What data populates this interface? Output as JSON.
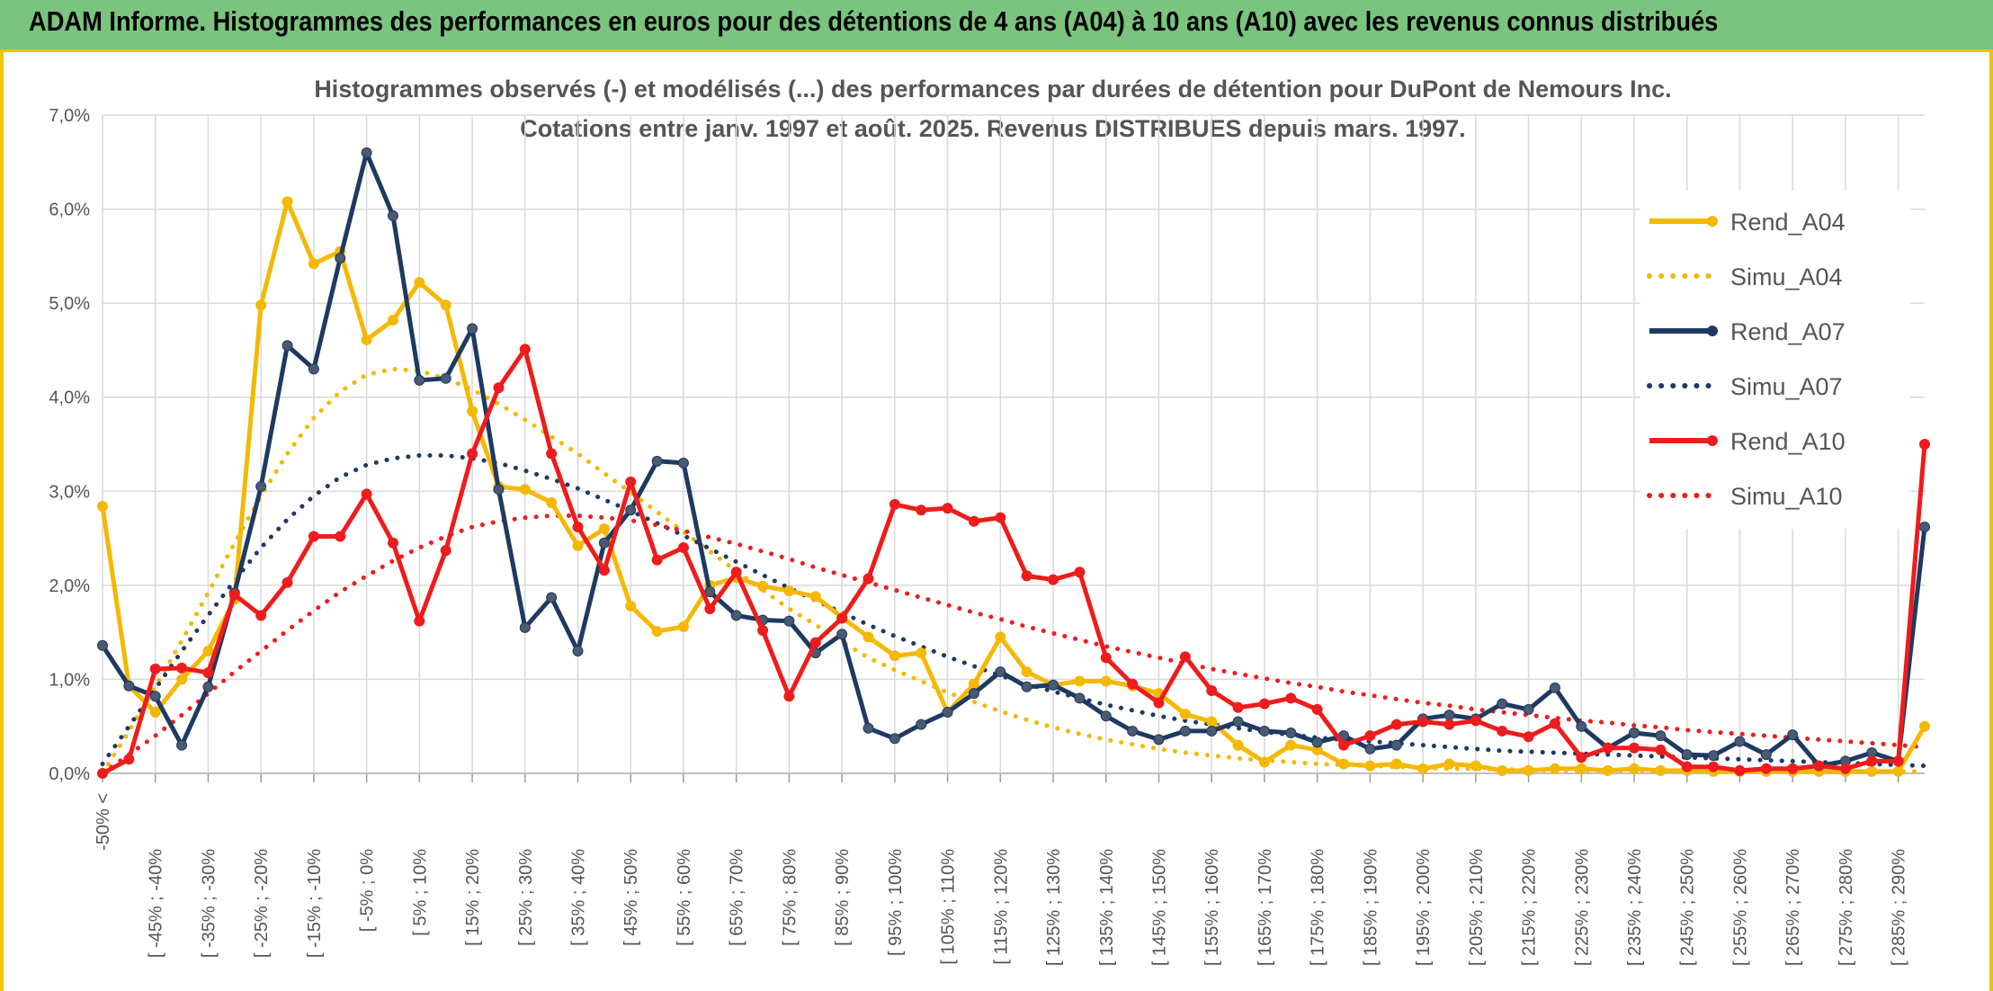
{
  "banner": {
    "title": "ADAM Informe. Histogrammes des performances en euros pour des détentions de 4 ans (A04) à 10 ans (A10) avec les revenus connus distribués"
  },
  "colors": {
    "banner_bg": "#7ac47e",
    "banner_border": "#f2c200",
    "grid": "#d9d9d9",
    "axis_text": "#555555"
  },
  "chart_data": {
    "type": "line",
    "title": "Histogrammes observés (-) et modélisés (...) des performances par durées de détention pour DuPont de Nemours Inc.",
    "subtitle": "Cotations entre janv. 1997 et août. 2025. Revenus DISTRIBUES depuis mars. 1997.",
    "xlabel": "",
    "ylabel": "",
    "ylim": [
      0,
      0.07
    ],
    "yticks": [
      "0,0%",
      "1,0%",
      "2,0%",
      "3,0%",
      "4,0%",
      "5,0%",
      "6,0%",
      "7,0%"
    ],
    "grid": true,
    "legend_position": "right",
    "tick_labels": [
      "-50% <",
      "[ -45% ; -40%",
      "[ -35% ; -30%",
      "[ -25% ; -20%",
      "[ -15% ; -10%",
      "[ -5% ; 0%",
      "[ 5% ; 10%",
      "[ 15% ; 20%",
      "[ 25% ; 30%",
      "[ 35% ; 40%",
      "[ 45% ; 50%",
      "[ 55% ; 60%",
      "[ 65% ; 70%",
      "[ 75% ; 80%",
      "[ 85% ; 90%",
      "[ 95% ; 100%",
      "[ 105% ; 110%",
      "[ 115% ; 120%",
      "[ 125% ; 130%",
      "[ 135% ; 140%",
      "[ 145% ; 150%",
      "[ 155% ; 160%",
      "[ 165% ; 170%",
      "[ 175% ; 180%",
      "[ 185% ; 190%",
      "[ 195% ; 200%",
      "[ 205% ; 210%",
      "[ 215% ; 220%",
      "[ 225% ; 230%",
      "[ 235% ; 240%",
      "[ 245% ; 250%",
      "[ 255% ; 260%",
      "[ 265% ; 270%",
      "[ 275% ; 280%",
      "[ 285% ; 290%"
    ],
    "num_categories": 70,
    "series": [
      {
        "name": "Rend_A04",
        "color": "#f5b800",
        "style": "solid",
        "values": [
          0.0284,
          0.0093,
          0.0065,
          0.01,
          0.013,
          0.0185,
          0.0498,
          0.0608,
          0.0542,
          0.0555,
          0.0461,
          0.0482,
          0.0522,
          0.0498,
          0.0385,
          0.0305,
          0.0302,
          0.0288,
          0.0242,
          0.026,
          0.0178,
          0.0151,
          0.0156,
          0.02,
          0.0208,
          0.0199,
          0.0194,
          0.0188,
          0.0166,
          0.0145,
          0.0125,
          0.0128,
          0.0065,
          0.0095,
          0.0145,
          0.0108,
          0.0094,
          0.0098,
          0.0098,
          0.0093,
          0.0085,
          0.0063,
          0.0055,
          0.003,
          0.0012,
          0.003,
          0.0025,
          0.001,
          0.0008,
          0.001,
          0.0005,
          0.001,
          0.0008,
          0.0003,
          0.0003,
          0.0005,
          0.0005,
          0.0003,
          0.0005,
          0.0003,
          0.0003,
          0.0002,
          0.0002,
          0.0002,
          0.0002,
          0.0002,
          0.0002,
          0.0002,
          0.0002,
          0.005
        ]
      },
      {
        "name": "Simu_A04",
        "color": "#f5b800",
        "style": "dotted",
        "values": [
          0.0,
          0.0045,
          0.0092,
          0.0141,
          0.0192,
          0.0245,
          0.0295,
          0.034,
          0.0378,
          0.0406,
          0.0424,
          0.043,
          0.0428,
          0.042,
          0.0408,
          0.0393,
          0.0376,
          0.0358,
          0.034,
          0.0319,
          0.0299,
          0.0278,
          0.0257,
          0.0236,
          0.0215,
          0.0195,
          0.0175,
          0.0158,
          0.014,
          0.0123,
          0.011,
          0.0098,
          0.0086,
          0.0076,
          0.0066,
          0.0057,
          0.0049,
          0.0042,
          0.0036,
          0.0031,
          0.0026,
          0.0022,
          0.0019,
          0.0016,
          0.0014,
          0.0012,
          0.001,
          0.0009,
          0.0008,
          0.0007,
          0.0006,
          0.0005,
          0.0005,
          0.0004,
          0.0004,
          0.0003,
          0.0003,
          0.0003,
          0.0003,
          0.0002,
          0.0002,
          0.0002,
          0.0002,
          0.0002,
          0.0002,
          0.0002,
          0.0002,
          0.0002,
          0.0002,
          0.0002
        ]
      },
      {
        "name": "Rend_A07",
        "color": "#1e3a63",
        "style": "solid",
        "values": [
          0.0136,
          0.0093,
          0.0082,
          0.003,
          0.0092,
          0.0192,
          0.0305,
          0.0455,
          0.043,
          0.0548,
          0.066,
          0.0593,
          0.0418,
          0.042,
          0.0473,
          0.0302,
          0.0155,
          0.0187,
          0.013,
          0.0245,
          0.028,
          0.0332,
          0.033,
          0.0193,
          0.0168,
          0.0163,
          0.0162,
          0.0128,
          0.0148,
          0.0048,
          0.0037,
          0.0052,
          0.0065,
          0.0085,
          0.0108,
          0.0092,
          0.0094,
          0.008,
          0.0061,
          0.0045,
          0.0036,
          0.0045,
          0.0045,
          0.0055,
          0.0045,
          0.0043,
          0.0033,
          0.004,
          0.0026,
          0.003,
          0.0058,
          0.0062,
          0.0058,
          0.0074,
          0.0068,
          0.0091,
          0.005,
          0.0027,
          0.0043,
          0.004,
          0.002,
          0.0019,
          0.0034,
          0.002,
          0.0041,
          0.0008,
          0.0013,
          0.0022,
          0.0013,
          0.0262
        ]
      },
      {
        "name": "Simu_A07",
        "color": "#1e3a63",
        "style": "dotted",
        "values": [
          0.001,
          0.005,
          0.009,
          0.013,
          0.0168,
          0.0205,
          0.024,
          0.027,
          0.0295,
          0.0315,
          0.0328,
          0.0335,
          0.0338,
          0.0338,
          0.0335,
          0.033,
          0.0322,
          0.0313,
          0.0303,
          0.0291,
          0.0279,
          0.0266,
          0.0253,
          0.0239,
          0.0225,
          0.0211,
          0.0197,
          0.0184,
          0.0171,
          0.0158,
          0.0146,
          0.0135,
          0.0124,
          0.0114,
          0.0104,
          0.0095,
          0.0087,
          0.008,
          0.0073,
          0.0067,
          0.0061,
          0.0056,
          0.0052,
          0.0048,
          0.0044,
          0.0041,
          0.0038,
          0.0036,
          0.0034,
          0.0032,
          0.003,
          0.0028,
          0.0026,
          0.0024,
          0.0023,
          0.0022,
          0.0021,
          0.002,
          0.0019,
          0.0018,
          0.0017,
          0.0016,
          0.0015,
          0.0014,
          0.0013,
          0.0012,
          0.0011,
          0.001,
          0.0009,
          0.0008
        ]
      },
      {
        "name": "Rend_A10",
        "color": "#ee1c1c",
        "style": "solid",
        "values": [
          0.0,
          0.0015,
          0.0111,
          0.0112,
          0.0107,
          0.019,
          0.0168,
          0.0203,
          0.0252,
          0.0252,
          0.0297,
          0.0245,
          0.0162,
          0.0237,
          0.034,
          0.041,
          0.0451,
          0.034,
          0.0262,
          0.0216,
          0.031,
          0.0227,
          0.024,
          0.0175,
          0.0214,
          0.0152,
          0.0082,
          0.0139,
          0.0165,
          0.0207,
          0.0286,
          0.028,
          0.0282,
          0.0268,
          0.0272,
          0.021,
          0.0206,
          0.0214,
          0.0123,
          0.0095,
          0.0075,
          0.0124,
          0.0088,
          0.007,
          0.0074,
          0.008,
          0.0068,
          0.003,
          0.004,
          0.0052,
          0.0055,
          0.0052,
          0.0056,
          0.0045,
          0.0039,
          0.0053,
          0.0017,
          0.0027,
          0.0027,
          0.0025,
          0.0007,
          0.0007,
          0.0003,
          0.0005,
          0.0005,
          0.0008,
          0.0005,
          0.0013,
          0.0013,
          0.035
        ]
      },
      {
        "name": "Simu_A10",
        "color": "#ee1c1c",
        "style": "dotted",
        "values": [
          0.0,
          0.002,
          0.004,
          0.0062,
          0.0085,
          0.0108,
          0.013,
          0.0152,
          0.0173,
          0.0193,
          0.021,
          0.0226,
          0.024,
          0.0252,
          0.0262,
          0.0268,
          0.0272,
          0.0274,
          0.0274,
          0.0272,
          0.0269,
          0.0264,
          0.0258,
          0.0251,
          0.0244,
          0.0236,
          0.0228,
          0.0219,
          0.0211,
          0.0203,
          0.0195,
          0.0187,
          0.0179,
          0.0171,
          0.0164,
          0.0156,
          0.0149,
          0.0142,
          0.0135,
          0.0129,
          0.0123,
          0.0117,
          0.0111,
          0.0106,
          0.0101,
          0.0096,
          0.0092,
          0.0087,
          0.0083,
          0.0079,
          0.0075,
          0.0072,
          0.0068,
          0.0065,
          0.0062,
          0.0059,
          0.0056,
          0.0054,
          0.0051,
          0.0049,
          0.0046,
          0.0044,
          0.0042,
          0.004,
          0.0038,
          0.0036,
          0.0034,
          0.0032,
          0.003,
          0.0028
        ]
      }
    ]
  }
}
